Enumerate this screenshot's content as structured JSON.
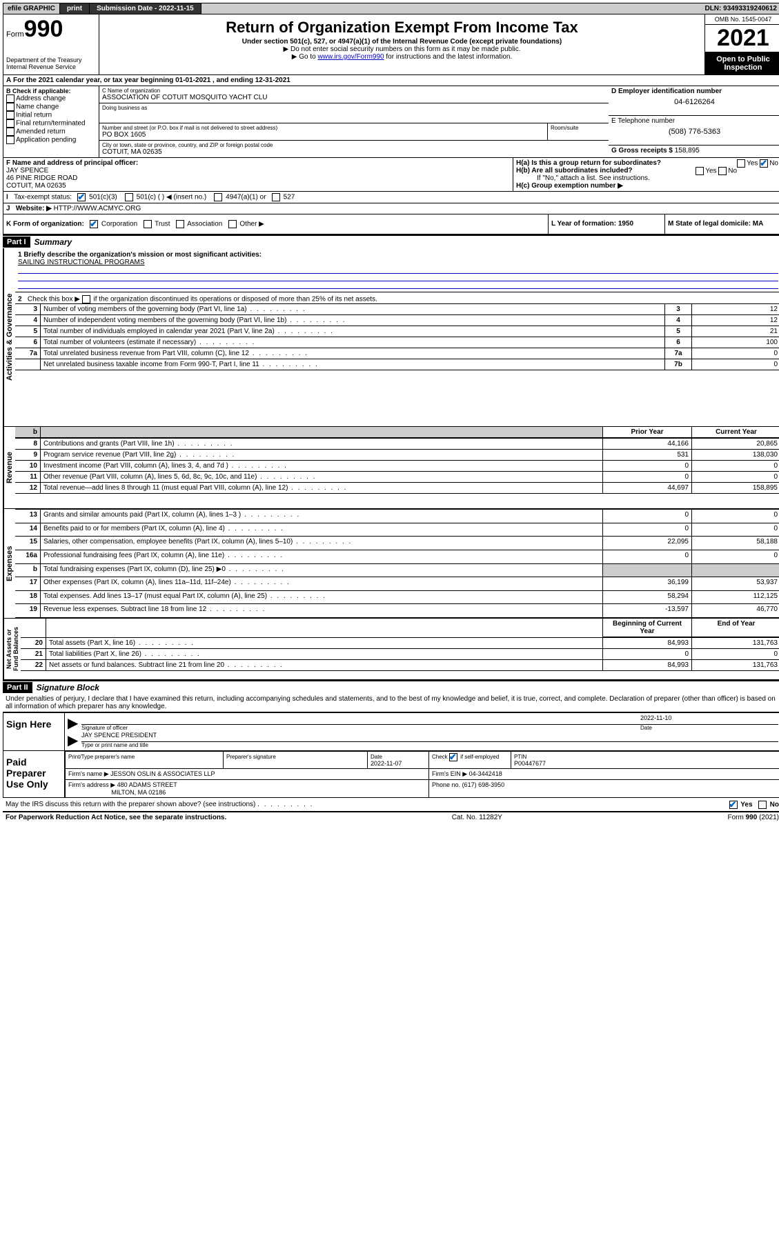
{
  "topbar": {
    "efile": "efile GRAPHIC",
    "print": "print",
    "submission_label": "Submission Date - 2022-11-15",
    "dln": "DLN: 93493319240612"
  },
  "header": {
    "form_prefix": "Form",
    "form_number": "990",
    "dept": "Department of the Treasury",
    "irs": "Internal Revenue Service",
    "title": "Return of Organization Exempt From Income Tax",
    "subtitle": "Under section 501(c), 527, or 4947(a)(1) of the Internal Revenue Code (except private foundations)",
    "note1": "Do not enter social security numbers on this form as it may be made public.",
    "note2_prefix": "Go to ",
    "note2_link": "www.irs.gov/Form990",
    "note2_suffix": " for instructions and the latest information.",
    "omb": "OMB No. 1545-0047",
    "year": "2021",
    "open": "Open to Public Inspection"
  },
  "lineA": {
    "text": "For the 2021 calendar year, or tax year beginning 01-01-2021    , and ending 12-31-2021"
  },
  "boxB": {
    "label": "B Check if applicable:",
    "items": [
      "Address change",
      "Name change",
      "Initial return",
      "Final return/terminated",
      "Amended return",
      "Application pending"
    ]
  },
  "boxC": {
    "name_label": "C Name of organization",
    "name": "ASSOCIATION OF COTUIT MOSQUITO YACHT CLU",
    "dba_label": "Doing business as",
    "addr_label": "Number and street (or P.O. box if mail is not delivered to street address)",
    "room_label": "Room/suite",
    "addr": "PO BOX 1605",
    "city_label": "City or town, state or province, country, and ZIP or foreign postal code",
    "city": "COTUIT, MA  02635"
  },
  "boxD": {
    "label": "D Employer identification number",
    "ein": "04-6126264"
  },
  "boxE": {
    "label": "E Telephone number",
    "phone": "(508) 776-5363"
  },
  "boxG": {
    "label": "G Gross receipts $",
    "amount": "158,895"
  },
  "boxF": {
    "label": "F Name and address of principal officer:",
    "name": "JAY SPENCE",
    "addr1": "46 PINE RIDGE ROAD",
    "addr2": "COTUIT, MA  02635"
  },
  "boxH": {
    "ha_label": "H(a)  Is this a group return for subordinates?",
    "hb_label": "H(b)  Are all subordinates included?",
    "hb_note": "If \"No,\" attach a list. See instructions.",
    "hc_label": "H(c)  Group exemption number ▶",
    "yes": "Yes",
    "no": "No"
  },
  "boxI": {
    "label": "Tax-exempt status:",
    "opt1": "501(c)(3)",
    "opt2": "501(c) (   ) ◀ (insert no.)",
    "opt3": "4947(a)(1) or",
    "opt4": "527"
  },
  "boxJ": {
    "label": "Website: ▶",
    "value": "HTTP://WWW.ACMYC.ORG"
  },
  "boxK": {
    "label": "K Form of organization:",
    "opts": [
      "Corporation",
      "Trust",
      "Association",
      "Other ▶"
    ]
  },
  "boxL": {
    "label": "L Year of formation: 1950"
  },
  "boxM": {
    "label": "M State of legal domicile: MA"
  },
  "part1": {
    "header": "Part I",
    "title": "Summary",
    "q1_label": "1  Briefly describe the organization's mission or most significant activities:",
    "q1_value": "SAILING INSTRUCTIONAL PROGRAMS",
    "q2": "2   Check this box ▶        if the organization discontinued its operations or disposed of more than 25% of its net assets.",
    "sections": {
      "gov": "Activities & Governance",
      "rev": "Revenue",
      "exp": "Expenses",
      "net": "Net Assets or Fund Balances"
    },
    "col_prior": "Prior Year",
    "col_current": "Current Year",
    "col_beg": "Beginning of Current Year",
    "col_end": "End of Year",
    "rows_gov": [
      {
        "n": "3",
        "d": "Number of voting members of the governing body (Part VI, line 1a)",
        "ln": "3",
        "v": "12"
      },
      {
        "n": "4",
        "d": "Number of independent voting members of the governing body (Part VI, line 1b)",
        "ln": "4",
        "v": "12"
      },
      {
        "n": "5",
        "d": "Total number of individuals employed in calendar year 2021 (Part V, line 2a)",
        "ln": "5",
        "v": "21"
      },
      {
        "n": "6",
        "d": "Total number of volunteers (estimate if necessary)",
        "ln": "6",
        "v": "100"
      },
      {
        "n": "7a",
        "d": "Total unrelated business revenue from Part VIII, column (C), line 12",
        "ln": "7a",
        "v": "0"
      },
      {
        "n": "",
        "d": "Net unrelated business taxable income from Form 990-T, Part I, line 11",
        "ln": "7b",
        "v": "0"
      }
    ],
    "rows_rev": [
      {
        "n": "8",
        "d": "Contributions and grants (Part VIII, line 1h)",
        "p": "44,166",
        "c": "20,865"
      },
      {
        "n": "9",
        "d": "Program service revenue (Part VIII, line 2g)",
        "p": "531",
        "c": "138,030"
      },
      {
        "n": "10",
        "d": "Investment income (Part VIII, column (A), lines 3, 4, and 7d )",
        "p": "0",
        "c": "0"
      },
      {
        "n": "11",
        "d": "Other revenue (Part VIII, column (A), lines 5, 6d, 8c, 9c, 10c, and 11e)",
        "p": "0",
        "c": "0"
      },
      {
        "n": "12",
        "d": "Total revenue—add lines 8 through 11 (must equal Part VIII, column (A), line 12)",
        "p": "44,697",
        "c": "158,895"
      }
    ],
    "rows_exp": [
      {
        "n": "13",
        "d": "Grants and similar amounts paid (Part IX, column (A), lines 1–3 )",
        "p": "0",
        "c": "0"
      },
      {
        "n": "14",
        "d": "Benefits paid to or for members (Part IX, column (A), line 4)",
        "p": "0",
        "c": "0"
      },
      {
        "n": "15",
        "d": "Salaries, other compensation, employee benefits (Part IX, column (A), lines 5–10)",
        "p": "22,095",
        "c": "58,188"
      },
      {
        "n": "16a",
        "d": "Professional fundraising fees (Part IX, column (A), line 11e)",
        "p": "0",
        "c": "0"
      },
      {
        "n": "b",
        "d": "Total fundraising expenses (Part IX, column (D), line 25) ▶0",
        "p": "",
        "c": "",
        "shaded": true
      },
      {
        "n": "17",
        "d": "Other expenses (Part IX, column (A), lines 11a–11d, 11f–24e)",
        "p": "36,199",
        "c": "53,937"
      },
      {
        "n": "18",
        "d": "Total expenses. Add lines 13–17 (must equal Part IX, column (A), line 25)",
        "p": "58,294",
        "c": "112,125"
      },
      {
        "n": "19",
        "d": "Revenue less expenses. Subtract line 18 from line 12",
        "p": "-13,597",
        "c": "46,770"
      }
    ],
    "rows_net": [
      {
        "n": "20",
        "d": "Total assets (Part X, line 16)",
        "p": "84,993",
        "c": "131,763"
      },
      {
        "n": "21",
        "d": "Total liabilities (Part X, line 26)",
        "p": "0",
        "c": "0"
      },
      {
        "n": "22",
        "d": "Net assets or fund balances. Subtract line 21 from line 20",
        "p": "84,993",
        "c": "131,763"
      }
    ]
  },
  "part2": {
    "header": "Part II",
    "title": "Signature Block",
    "perjury": "Under penalties of perjury, I declare that I have examined this return, including accompanying schedules and statements, and to the best of my knowledge and belief, it is true, correct, and complete. Declaration of preparer (other than officer) is based on all information of which preparer has any knowledge.",
    "sign_here": "Sign Here",
    "sig_officer": "Signature of officer",
    "sig_date_label": "Date",
    "sig_date": "2022-11-10",
    "officer_name": "JAY SPENCE PRESIDENT",
    "officer_type": "Type or print name and title",
    "paid": "Paid Preparer Use Only",
    "prep_name_label": "Print/Type preparer's name",
    "prep_sig_label": "Preparer's signature",
    "prep_date_label": "Date",
    "prep_date": "2022-11-07",
    "self_emp": "Check         if self-employed",
    "ptin_label": "PTIN",
    "ptin": "P00447677",
    "firm_name_label": "Firm's name    ▶",
    "firm_name": "JESSON OSLIN & ASSOCIATES LLP",
    "firm_ein_label": "Firm's EIN ▶",
    "firm_ein": "04-3442418",
    "firm_addr_label": "Firm's address ▶",
    "firm_addr1": "480 ADAMS STREET",
    "firm_addr2": "MILTON, MA  02186",
    "firm_phone_label": "Phone no.",
    "firm_phone": "(617) 698-3950",
    "discuss": "May the IRS discuss this return with the preparer shown above? (see instructions)"
  },
  "footer": {
    "left": "For Paperwork Reduction Act Notice, see the separate instructions.",
    "center": "Cat. No. 11282Y",
    "right": "Form 990 (2021)"
  }
}
